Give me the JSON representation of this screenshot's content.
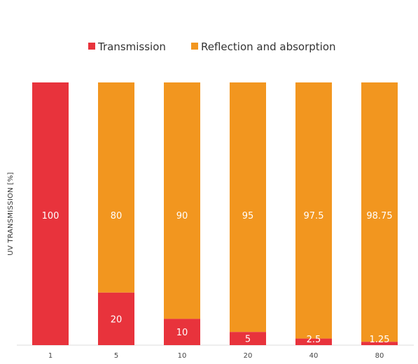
{
  "chart_data": {
    "type": "bar",
    "stacked": true,
    "percent_stacked": true,
    "categories": [
      "1",
      "5",
      "10",
      "20",
      "40",
      "80"
    ],
    "series": [
      {
        "name": "Transmission",
        "color": "#e8333c",
        "values": [
          100,
          20,
          10,
          5,
          2.5,
          1.25
        ]
      },
      {
        "name": "Reflection and absorption",
        "color": "#f2961f",
        "values": [
          0,
          80,
          90,
          95,
          97.5,
          98.75
        ]
      }
    ],
    "data_labels": {
      "Transmission": [
        "100",
        "20",
        "10",
        "5",
        "2.5",
        "1.25"
      ],
      "Reflection and absorption": [
        "",
        "80",
        "90",
        "95",
        "97.5",
        "98.75"
      ]
    },
    "title": "",
    "xlabel": "",
    "ylabel": "UV TRANSMISSION [%]",
    "ylim": [
      0,
      100
    ],
    "grid": false,
    "legend": "top-center"
  }
}
